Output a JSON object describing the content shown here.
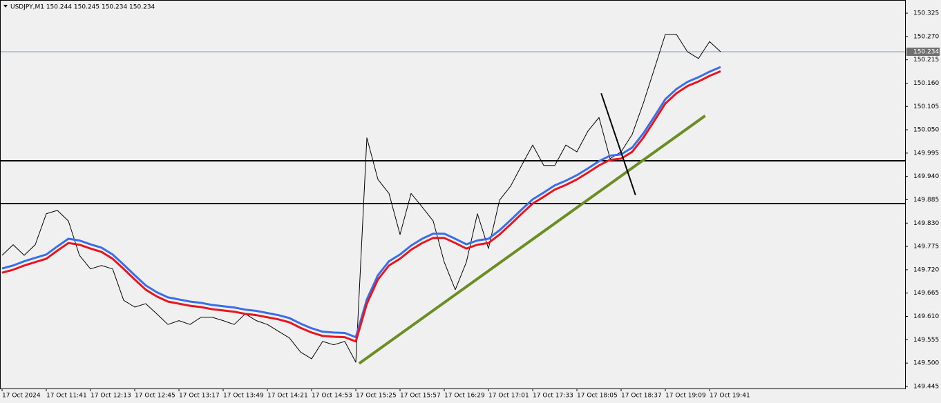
{
  "chart_data": {
    "type": "line",
    "title": "USDJPY,M1  150.244 150.245 150.234 150.234",
    "categories": [
      "17 Oct 2024",
      null,
      null,
      null,
      "17 Oct 11:41",
      null,
      null,
      null,
      "17 Oct 12:13",
      null,
      null,
      null,
      "17 Oct 12:45",
      null,
      null,
      null,
      "17 Oct 13:17",
      null,
      null,
      null,
      "17 Oct 13:49",
      null,
      null,
      null,
      "17 Oct 14:21",
      null,
      null,
      null,
      "17 Oct 14:53",
      null,
      null,
      null,
      "17 Oct 15:25",
      null,
      null,
      null,
      "17 Oct 15:57",
      null,
      null,
      null,
      "17 Oct 16:29",
      null,
      null,
      null,
      "17 Oct 17:01",
      null,
      null,
      null,
      "17 Oct 17:33",
      null,
      null,
      null,
      "17 Oct 18:05",
      null,
      null,
      null,
      "17 Oct 18:37",
      null,
      null,
      null,
      "17 Oct 19:09",
      null,
      null,
      null,
      "17 Oct 19:41",
      null
    ],
    "series": [
      {
        "color": "#000000",
        "width": 1,
        "values": [
          149.754,
          149.779,
          149.754,
          149.779,
          149.852,
          149.86,
          149.835,
          149.754,
          149.722,
          149.73,
          149.722,
          149.648,
          149.632,
          149.64,
          149.616,
          149.591,
          149.6,
          149.591,
          149.608,
          149.608,
          149.6,
          149.591,
          149.616,
          149.6,
          149.591,
          149.575,
          149.559,
          149.526,
          149.51,
          149.551,
          149.543,
          149.551,
          149.502,
          150.031,
          149.933,
          149.9,
          149.803,
          149.9,
          149.868,
          149.835,
          149.738,
          149.673,
          149.738,
          149.852,
          149.77,
          149.884,
          149.917,
          149.966,
          150.014,
          149.966,
          149.966,
          150.014,
          149.998,
          150.047,
          150.079,
          149.982,
          149.998,
          150.039,
          150.112,
          150.193,
          150.275,
          150.275,
          150.234,
          150.218,
          150.258,
          150.234
        ]
      },
      {
        "color": "#3a6ee8",
        "width": 3,
        "values": [
          149.723,
          149.73,
          149.74,
          149.748,
          149.756,
          149.775,
          149.793,
          149.789,
          149.78,
          149.772,
          149.756,
          149.732,
          149.707,
          149.683,
          149.667,
          149.655,
          149.65,
          149.645,
          149.642,
          149.637,
          149.634,
          149.631,
          149.626,
          149.623,
          149.618,
          149.613,
          149.606,
          149.593,
          149.582,
          149.574,
          149.572,
          149.571,
          149.561,
          149.65,
          149.707,
          149.74,
          149.756,
          149.777,
          149.793,
          149.805,
          149.805,
          149.793,
          149.78,
          149.789,
          149.793,
          149.813,
          149.837,
          149.862,
          149.886,
          149.902,
          149.919,
          149.93,
          149.943,
          149.959,
          149.976,
          149.989,
          149.992,
          150.008,
          150.041,
          150.081,
          150.122,
          150.146,
          150.163,
          150.174,
          150.187,
          150.198
        ]
      },
      {
        "color": "#e8141e",
        "width": 3,
        "values": [
          149.713,
          149.72,
          149.73,
          149.738,
          149.746,
          149.765,
          149.783,
          149.779,
          149.77,
          149.762,
          149.746,
          149.722,
          149.697,
          149.673,
          149.657,
          149.645,
          149.64,
          149.635,
          149.632,
          149.627,
          149.624,
          149.621,
          149.616,
          149.613,
          149.608,
          149.603,
          149.596,
          149.583,
          149.572,
          149.564,
          149.562,
          149.561,
          149.551,
          149.64,
          149.697,
          149.73,
          149.746,
          149.767,
          149.783,
          149.795,
          149.795,
          149.783,
          149.77,
          149.779,
          149.783,
          149.803,
          149.827,
          149.852,
          149.876,
          149.892,
          149.909,
          149.92,
          149.933,
          149.949,
          149.966,
          149.979,
          149.982,
          149.998,
          150.031,
          150.071,
          150.112,
          150.136,
          150.153,
          150.164,
          150.177,
          150.188
        ]
      }
    ],
    "ylim": [
      149.44,
      150.356
    ],
    "yticks": [
      149.445,
      {
        "value": 149.5,
        "label": "149.500"
      },
      149.555,
      {
        "value": 149.61,
        "label": "149.610"
      },
      149.665,
      {
        "value": 149.72,
        "label": "149.720"
      },
      149.775,
      {
        "value": 149.83,
        "label": "149.830"
      },
      149.885,
      {
        "value": 149.94,
        "label": "149.940"
      },
      149.995,
      {
        "value": 150.05,
        "label": "150.050"
      },
      150.105,
      {
        "value": 150.16,
        "label": "150.160"
      },
      150.215,
      {
        "value": 150.27,
        "label": "150.270"
      },
      150.325
    ],
    "current_price": 150.234,
    "levels": [
      149.977,
      149.876
    ],
    "trendlines": [
      {
        "color": "#6b8e23",
        "points": [
          [
            32.3,
            149.499
          ],
          [
            63.6,
            150.083
          ]
        ]
      },
      {
        "color": "#000000",
        "points": [
          [
            54.2,
            150.136
          ],
          [
            57.3,
            149.896
          ]
        ]
      }
    ]
  }
}
